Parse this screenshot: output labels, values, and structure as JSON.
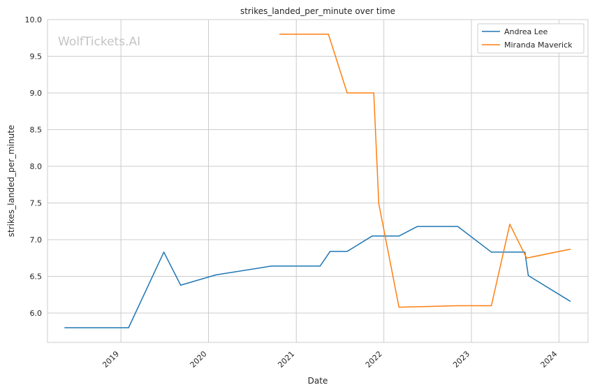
{
  "chart_data": {
    "type": "line",
    "title": "strikes_landed_per_minute over time",
    "xlabel": "Date",
    "ylabel": "strikes_landed_per_minute",
    "watermark": "WolfTickets.AI",
    "xlim": [
      "2018-03-01",
      "2024-05-01"
    ],
    "ylim": [
      5.6,
      10.0
    ],
    "x_ticks": [
      "2019-01-01",
      "2020-01-01",
      "2021-01-01",
      "2022-01-01",
      "2023-01-01",
      "2024-01-01"
    ],
    "x_tick_labels": [
      "2019",
      "2020",
      "2021",
      "2022",
      "2023",
      "2024"
    ],
    "y_ticks": [
      6.0,
      6.5,
      7.0,
      7.5,
      8.0,
      8.5,
      9.0,
      9.5,
      10.0
    ],
    "y_tick_labels": [
      "6.0",
      "6.5",
      "7.0",
      "7.5",
      "8.0",
      "8.5",
      "9.0",
      "9.5",
      "10.0"
    ],
    "grid": true,
    "legend_position": "top-right",
    "series": [
      {
        "name": "Andrea Lee",
        "color": "#1f77b4",
        "points": [
          [
            "2018-05-12",
            5.8
          ],
          [
            "2019-02-02",
            5.8
          ],
          [
            "2019-06-29",
            6.83
          ],
          [
            "2019-09-07",
            6.38
          ],
          [
            "2020-02-01",
            6.52
          ],
          [
            "2020-09-19",
            6.64
          ],
          [
            "2021-04-10",
            6.64
          ],
          [
            "2021-05-22",
            6.84
          ],
          [
            "2021-08-01",
            6.84
          ],
          [
            "2021-11-13",
            7.05
          ],
          [
            "2022-03-05",
            7.05
          ],
          [
            "2022-05-21",
            7.18
          ],
          [
            "2022-11-05",
            7.18
          ],
          [
            "2023-03-25",
            6.83
          ],
          [
            "2023-08-12",
            6.83
          ],
          [
            "2023-08-26",
            6.51
          ],
          [
            "2024-02-17",
            6.16
          ]
        ]
      },
      {
        "name": "Miranda Maverick",
        "color": "#ff7f0e",
        "points": [
          [
            "2020-10-24",
            9.8
          ],
          [
            "2021-05-15",
            9.8
          ],
          [
            "2021-08-01",
            9.0
          ],
          [
            "2021-11-20",
            9.0
          ],
          [
            "2021-12-11",
            7.49
          ],
          [
            "2022-03-05",
            6.08
          ],
          [
            "2022-11-05",
            6.1
          ],
          [
            "2023-03-25",
            6.1
          ],
          [
            "2023-06-10",
            7.21
          ],
          [
            "2023-08-19",
            6.75
          ],
          [
            "2024-02-17",
            6.87
          ]
        ]
      }
    ]
  }
}
